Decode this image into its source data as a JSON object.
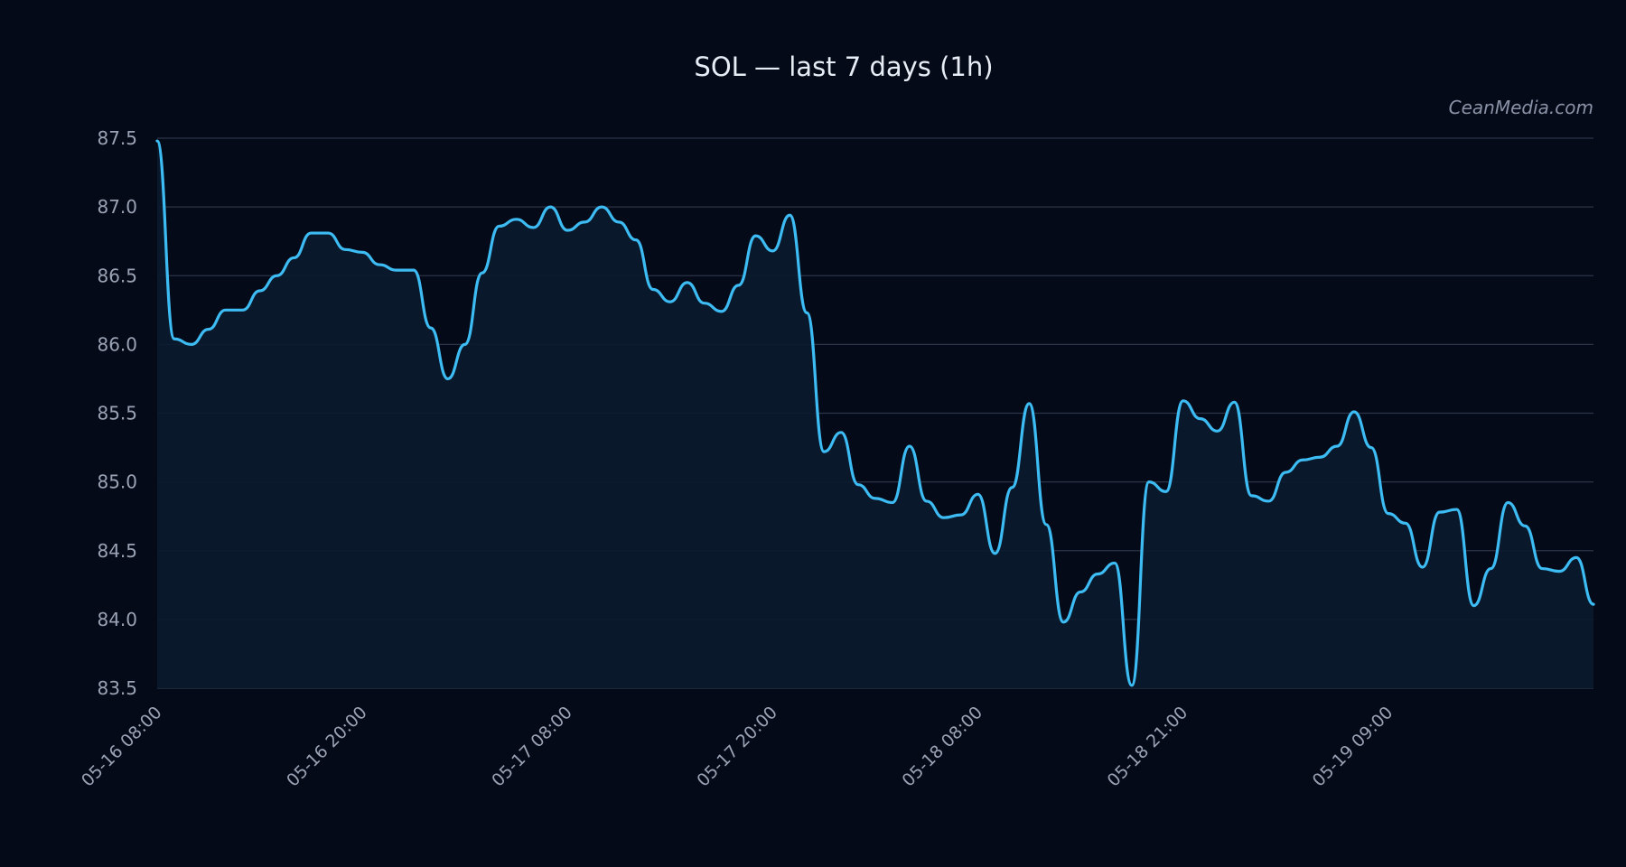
{
  "watermark": "CeanMedia.com",
  "colors": {
    "background": "#050a19",
    "line": "#3dbcf4",
    "area": "#0a1a2e",
    "grid": "#2a3547",
    "text": "#9aa3b4",
    "title": "#e8edf5"
  },
  "chart_data": {
    "type": "area",
    "title": "SOL — last 7 days (1h)",
    "xlabel": "",
    "ylabel": "",
    "ylim": [
      83.5,
      87.5
    ],
    "yticks": [
      "87.5",
      "87.0",
      "86.5",
      "86.0",
      "85.5",
      "85.0",
      "84.5",
      "84.0",
      "83.5"
    ],
    "xticks": [
      {
        "label": "05-16 08:00",
        "index": 0
      },
      {
        "label": "05-16 20:00",
        "index": 12
      },
      {
        "label": "05-17 08:00",
        "index": 24
      },
      {
        "label": "05-17 20:00",
        "index": 36
      },
      {
        "label": "05-18 08:00",
        "index": 48
      },
      {
        "label": "05-18 21:00",
        "index": 60
      },
      {
        "label": "05-19 09:00",
        "index": 72
      }
    ],
    "grid": true,
    "series": [
      {
        "values": [
          87.48,
          86.04,
          86.0,
          86.11,
          86.25,
          86.25,
          86.39,
          86.5,
          86.63,
          86.81,
          86.81,
          86.69,
          86.67,
          86.58,
          86.54,
          86.54,
          86.12,
          85.75,
          86.0,
          86.52,
          86.86,
          86.91,
          86.85,
          87.0,
          86.83,
          86.89,
          87.0,
          86.89,
          86.76,
          86.4,
          86.31,
          86.45,
          86.3,
          86.24,
          86.43,
          86.79,
          86.68,
          86.94,
          86.23,
          85.22,
          85.36,
          84.98,
          84.88,
          84.85,
          85.26,
          84.86,
          84.74,
          84.76,
          84.91,
          84.48,
          84.96,
          85.57,
          84.69,
          83.98,
          84.2,
          84.33,
          84.41,
          83.52,
          85.0,
          84.93,
          85.59,
          85.46,
          85.37,
          85.58,
          84.9,
          84.86,
          85.07,
          85.16,
          85.18,
          85.26,
          85.51,
          85.25,
          84.77,
          84.7,
          84.38,
          84.78,
          84.8,
          84.1,
          84.37,
          84.85,
          84.68,
          84.37,
          84.35,
          84.45,
          84.11
        ]
      }
    ]
  }
}
